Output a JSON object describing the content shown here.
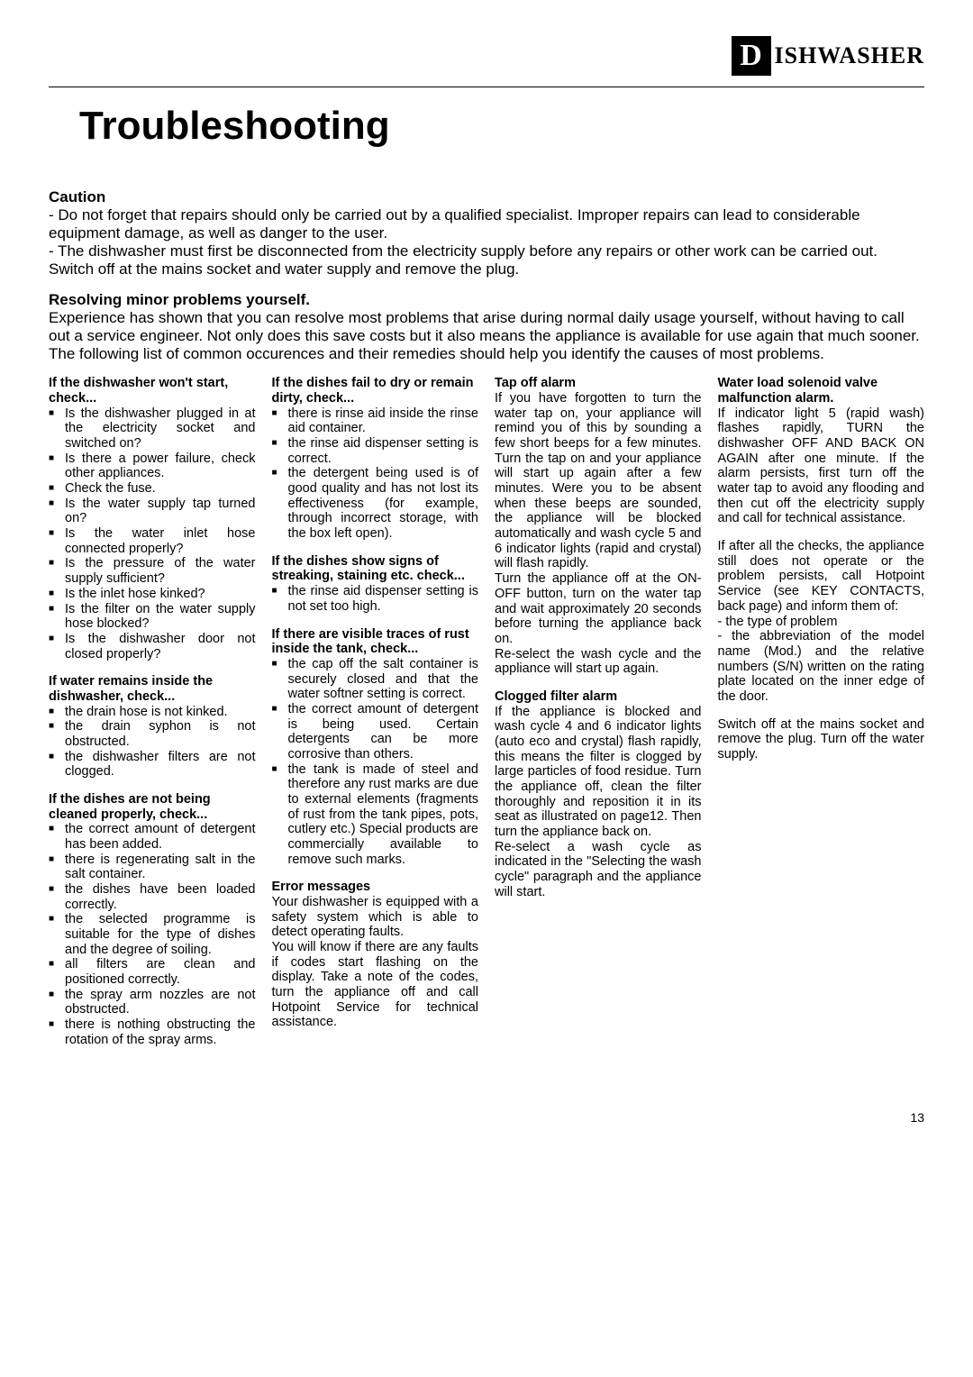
{
  "brand": {
    "initial": "D",
    "rest": "ISHWASHER"
  },
  "title": "Troubleshooting",
  "caution": {
    "heading": "Caution",
    "lines": [
      "- Do not forget that repairs should only be carried out by a qualified specialist. Improper repairs can lead to considerable equipment damage, as well as danger to the user.",
      "- The dishwasher must first be disconnected from the electricity supply before any repairs or other work can be carried out. Switch off at the mains socket and water supply and remove the plug."
    ]
  },
  "resolving": {
    "heading": "Resolving minor problems yourself.",
    "body": "Experience has shown that you can resolve most problems that arise during normal daily usage yourself, without having to call out a service engineer. Not only does this save costs but it also means the appliance is available for use again that much sooner. The following list of common occurences and their remedies should help you identify the causes of most problems."
  },
  "sections": {
    "wont_start": {
      "head": "If the dishwasher won't start, check...",
      "items": [
        "Is the dishwasher plugged in at the electricity socket and switched on?",
        "Is there a power failure, check other appliances.",
        "Check the fuse.",
        "Is the water supply tap turned on?",
        "Is the water inlet hose connected properly?",
        "Is the pressure of the water supply sufficient?",
        "Is the inlet hose kinked?",
        "Is the filter on the water supply hose blocked?",
        "Is the dishwasher door not closed properly?"
      ]
    },
    "water_remains": {
      "head": "If water remains inside the dishwasher, check...",
      "items": [
        "the drain hose is not kinked.",
        "the drain syphon is not obstructed.",
        "the dishwasher filters are not clogged."
      ]
    },
    "not_cleaned": {
      "head": "If the dishes are not being cleaned properly, check...",
      "items": [
        "the correct amount of detergent has been added.",
        "there is regenerating salt in the salt container.",
        "the dishes have been loaded correctly.",
        "the selected programme is suitable for the type of dishes and the degree of soiling.",
        "all filters are clean and positioned correctly.",
        "the spray arm nozzles are not obstructed.",
        "there is nothing obstructing the rotation of the spray arms."
      ]
    },
    "fail_dry": {
      "head": "If the dishes fail to dry or remain dirty, check...",
      "items": [
        "there is rinse aid inside the rinse aid container.",
        "the rinse aid dispenser setting is correct.",
        "the detergent being used is of good quality and has not lost its effectiveness (for example, through incorrect storage, with the box left open)."
      ]
    },
    "streaking": {
      "head": "If the dishes show signs of streaking, staining etc. check...",
      "items": [
        "the rinse aid dispenser setting is not set too high."
      ]
    },
    "rust": {
      "head": "If there are visible traces of rust inside the tank, check...",
      "items": [
        "the cap off the salt container is securely closed and that the water softner setting is correct.",
        "the correct amount of detergent is being used. Certain detergents can be more corrosive than others.",
        "the tank is made of steel and therefore any rust marks are due to external elements (fragments of rust from the tank pipes, pots, cutlery etc.) Special products are commercially available to remove such marks."
      ]
    },
    "error_msgs": {
      "head": "Error messages",
      "p1": "Your dishwasher is equipped with a safety system which is able to detect operating faults.",
      "p2": "You will know if there are any  faults if codes start flashing on the display. Take a note of the codes, turn the appliance off and call Hotpoint Service for technical assistance."
    },
    "tap_off": {
      "head": "Tap off alarm",
      "p1": "If you have forgotten to turn the water tap on, your appliance will remind you of this by sounding a few short beeps for a few minutes. Turn the tap on and your appliance will start up again after a few minutes. Were you to be absent when these beeps are sounded, the appliance will be blocked automatically and wash cycle 5 and 6 indicator lights (rapid and crystal) will flash rapidly.",
      "p2": "Turn the appliance off at the ON-OFF button, turn on the water tap and wait approximately 20 seconds before turning the appliance back on.",
      "p3": "Re-select the wash cycle and the appliance will start up again."
    },
    "clogged": {
      "head": "Clogged filter alarm",
      "p1": "If the appliance is blocked and wash cycle 4 and 6 indicator lights (auto eco and crystal) flash rapidly, this means the filter is clogged by large particles of food residue. Turn the appliance off, clean the filter thoroughly and reposition it in its seat as illustrated on page12. Then turn the appliance back on.",
      "p2": "Re-select a wash cycle as indicated in the \"Selecting the wash cycle\" paragraph and the appliance will start."
    },
    "solenoid": {
      "head": "Water load solenoid valve malfunction alarm.",
      "p1": "If indicator light 5 (rapid wash) flashes rapidly, TURN the dishwasher OFF AND BACK ON  AGAIN after one minute. If the alarm persists, first turn off the water tap to avoid any flooding and then cut off the electricity supply and call for technical assistance."
    },
    "after_checks": {
      "p1": "If after all the checks, the appliance still does not operate or the problem persists, call Hotpoint Service (see KEY CONTACTS, back page) and inform them of:",
      "p2": "- the type of problem",
      "p3": "- the abbreviation of the model name (Mod.) and the relative numbers (S/N) written on the rating plate located on the inner edge of the door.",
      "p4": "Switch off at the mains socket and remove the plug. Turn off the water supply."
    }
  },
  "page_number": "13"
}
